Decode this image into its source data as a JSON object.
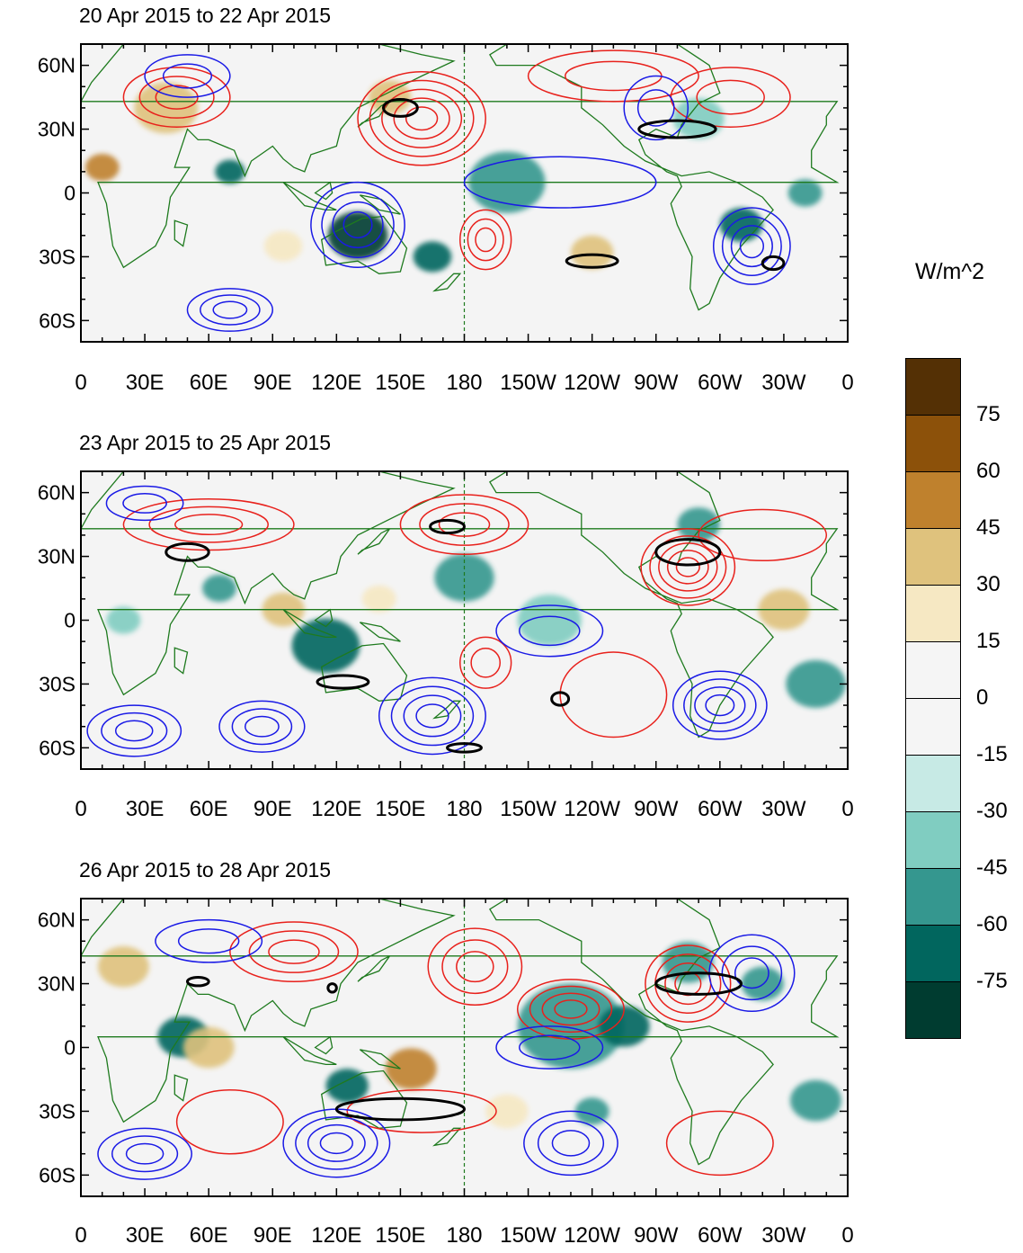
{
  "units_label": "W/m^2",
  "colors": {
    "positive_contour": "#e8211c",
    "negative_contour": "#1a1ae6",
    "highlight_contour": "#000000",
    "coastline": "#1e7a1e",
    "background": "#f4f4f4"
  },
  "lon_labels": [
    "0",
    "30E",
    "60E",
    "90E",
    "120E",
    "150E",
    "180",
    "150W",
    "120W",
    "90W",
    "60W",
    "30W",
    "0"
  ],
  "lat_labels": [
    "60N",
    "30N",
    "0",
    "30S",
    "60S"
  ],
  "colorbar": {
    "colors": [
      "#543005",
      "#8c510a",
      "#bf812d",
      "#dfc27d",
      "#f6e8c3",
      "#f5f5f5",
      "#f5f5f5",
      "#c7eae5",
      "#80cdc1",
      "#35978f",
      "#01665e",
      "#003c30"
    ],
    "labels": [
      "75",
      "60",
      "45",
      "30",
      "15",
      "0",
      "-15",
      "-30",
      "-45",
      "-60",
      "-75"
    ]
  },
  "panels": [
    {
      "title": "20 Apr 2015 to 22 Apr 2015",
      "anomalies": [
        {
          "lon": 130,
          "lat": -20,
          "r": 14,
          "value": -75
        },
        {
          "lon": 165,
          "lat": -30,
          "r": 9,
          "value": -60
        },
        {
          "lon": 200,
          "lat": 5,
          "r": 18,
          "value": -45
        },
        {
          "lon": 240,
          "lat": -28,
          "r": 10,
          "value": 30
        },
        {
          "lon": 310,
          "lat": -15,
          "r": 10,
          "value": -60
        },
        {
          "lon": 70,
          "lat": 10,
          "r": 7,
          "value": -60
        },
        {
          "lon": 10,
          "lat": 12,
          "r": 8,
          "value": 45
        },
        {
          "lon": 40,
          "lat": 40,
          "r": 15,
          "value": 30
        },
        {
          "lon": 145,
          "lat": 45,
          "r": 10,
          "value": 30
        },
        {
          "lon": 290,
          "lat": 35,
          "r": 12,
          "value": -30
        },
        {
          "lon": 340,
          "lat": 0,
          "r": 8,
          "value": -45
        },
        {
          "lon": 95,
          "lat": -25,
          "r": 9,
          "value": 15
        }
      ],
      "contours": [
        {
          "sign": "pos",
          "lon": 160,
          "lat": 35,
          "rx": 30,
          "ry": 22,
          "levels": 5
        },
        {
          "sign": "pos",
          "lon": 45,
          "lat": 45,
          "rx": 25,
          "ry": 14,
          "levels": 3
        },
        {
          "sign": "pos",
          "lon": 190,
          "lat": -22,
          "rx": 12,
          "ry": 14,
          "levels": 3
        },
        {
          "sign": "pos",
          "lon": 250,
          "lat": 55,
          "rx": 40,
          "ry": 12,
          "levels": 2
        },
        {
          "sign": "pos",
          "lon": 305,
          "lat": 45,
          "rx": 28,
          "ry": 14,
          "levels": 2
        },
        {
          "sign": "neg",
          "lon": 70,
          "lat": -55,
          "rx": 20,
          "ry": 10,
          "levels": 3
        },
        {
          "sign": "neg",
          "lon": 130,
          "lat": -15,
          "rx": 22,
          "ry": 20,
          "levels": 4
        },
        {
          "sign": "neg",
          "lon": 315,
          "lat": -25,
          "rx": 18,
          "ry": 18,
          "levels": 4
        },
        {
          "sign": "neg",
          "lon": 50,
          "lat": 55,
          "rx": 20,
          "ry": 10,
          "levels": 2
        },
        {
          "sign": "neg",
          "lon": 225,
          "lat": 5,
          "rx": 45,
          "ry": 12,
          "levels": 1
        },
        {
          "sign": "neg",
          "lon": 270,
          "lat": 40,
          "rx": 15,
          "ry": 15,
          "levels": 2
        }
      ],
      "highlights": [
        {
          "lon": 150,
          "lat": 40,
          "rx": 8,
          "ry": 4
        },
        {
          "lon": 240,
          "lat": -32,
          "rx": 12,
          "ry": 3
        },
        {
          "lon": 280,
          "lat": 30,
          "rx": 18,
          "ry": 4
        },
        {
          "lon": 325,
          "lat": -33,
          "rx": 5,
          "ry": 3
        }
      ]
    },
    {
      "title": "23 Apr 2015 to 25 Apr 2015",
      "anomalies": [
        {
          "lon": 115,
          "lat": -12,
          "r": 16,
          "value": -60
        },
        {
          "lon": 65,
          "lat": 15,
          "r": 8,
          "value": -45
        },
        {
          "lon": 180,
          "lat": 20,
          "r": 14,
          "value": -45
        },
        {
          "lon": 220,
          "lat": 0,
          "r": 15,
          "value": -30
        },
        {
          "lon": 95,
          "lat": 5,
          "r": 10,
          "value": 30
        },
        {
          "lon": 330,
          "lat": 5,
          "r": 12,
          "value": 30
        },
        {
          "lon": 345,
          "lat": -30,
          "r": 14,
          "value": -45
        },
        {
          "lon": 290,
          "lat": 45,
          "r": 10,
          "value": -45
        },
        {
          "lon": 20,
          "lat": 0,
          "r": 8,
          "value": -30
        },
        {
          "lon": 140,
          "lat": 10,
          "r": 8,
          "value": 15
        }
      ],
      "contours": [
        {
          "sign": "pos",
          "lon": 60,
          "lat": 45,
          "rx": 40,
          "ry": 12,
          "levels": 3
        },
        {
          "sign": "pos",
          "lon": 180,
          "lat": 45,
          "rx": 30,
          "ry": 14,
          "levels": 3
        },
        {
          "sign": "pos",
          "lon": 285,
          "lat": 25,
          "rx": 22,
          "ry": 18,
          "levels": 5
        },
        {
          "sign": "pos",
          "lon": 190,
          "lat": -20,
          "rx": 12,
          "ry": 12,
          "levels": 2
        },
        {
          "sign": "pos",
          "lon": 250,
          "lat": -35,
          "rx": 25,
          "ry": 20,
          "levels": 1
        },
        {
          "sign": "pos",
          "lon": 320,
          "lat": 40,
          "rx": 30,
          "ry": 12,
          "levels": 1
        },
        {
          "sign": "neg",
          "lon": 25,
          "lat": -52,
          "rx": 22,
          "ry": 12,
          "levels": 3
        },
        {
          "sign": "neg",
          "lon": 85,
          "lat": -50,
          "rx": 20,
          "ry": 12,
          "levels": 3
        },
        {
          "sign": "neg",
          "lon": 165,
          "lat": -45,
          "rx": 25,
          "ry": 18,
          "levels": 4
        },
        {
          "sign": "neg",
          "lon": 300,
          "lat": -40,
          "rx": 22,
          "ry": 16,
          "levels": 4
        },
        {
          "sign": "neg",
          "lon": 220,
          "lat": -5,
          "rx": 25,
          "ry": 12,
          "levels": 2
        },
        {
          "sign": "neg",
          "lon": 30,
          "lat": 55,
          "rx": 18,
          "ry": 8,
          "levels": 2
        }
      ],
      "highlights": [
        {
          "lon": 50,
          "lat": 32,
          "rx": 10,
          "ry": 4
        },
        {
          "lon": 123,
          "lat": -29,
          "rx": 12,
          "ry": 3
        },
        {
          "lon": 172,
          "lat": 44,
          "rx": 8,
          "ry": 3
        },
        {
          "lon": 285,
          "lat": 32,
          "rx": 15,
          "ry": 6
        },
        {
          "lon": 180,
          "lat": -60,
          "rx": 8,
          "ry": 2
        },
        {
          "lon": 225,
          "lat": -37,
          "rx": 4,
          "ry": 3
        }
      ]
    },
    {
      "title": "26 Apr 2015 to 28 Apr 2015",
      "anomalies": [
        {
          "lon": 48,
          "lat": 5,
          "r": 12,
          "value": -60
        },
        {
          "lon": 125,
          "lat": -18,
          "r": 10,
          "value": -60
        },
        {
          "lon": 230,
          "lat": 10,
          "r": 25,
          "value": -45
        },
        {
          "lon": 255,
          "lat": 10,
          "r": 12,
          "value": -60
        },
        {
          "lon": 285,
          "lat": 40,
          "r": 12,
          "value": -45
        },
        {
          "lon": 320,
          "lat": 30,
          "r": 10,
          "value": -45
        },
        {
          "lon": 240,
          "lat": -30,
          "r": 8,
          "value": -45
        },
        {
          "lon": 155,
          "lat": -10,
          "r": 12,
          "value": 45
        },
        {
          "lon": 345,
          "lat": -25,
          "r": 12,
          "value": -45
        },
        {
          "lon": 60,
          "lat": 0,
          "r": 12,
          "value": 30
        },
        {
          "lon": 200,
          "lat": -30,
          "r": 10,
          "value": 15
        },
        {
          "lon": 20,
          "lat": 38,
          "r": 12,
          "value": 30
        }
      ],
      "contours": [
        {
          "sign": "pos",
          "lon": 100,
          "lat": 45,
          "rx": 30,
          "ry": 14,
          "levels": 3
        },
        {
          "sign": "pos",
          "lon": 185,
          "lat": 38,
          "rx": 22,
          "ry": 18,
          "levels": 3
        },
        {
          "sign": "pos",
          "lon": 230,
          "lat": 18,
          "rx": 25,
          "ry": 14,
          "levels": 4
        },
        {
          "sign": "pos",
          "lon": 285,
          "lat": 30,
          "rx": 20,
          "ry": 18,
          "levels": 4
        },
        {
          "sign": "pos",
          "lon": 160,
          "lat": -30,
          "rx": 35,
          "ry": 10,
          "levels": 1
        },
        {
          "sign": "pos",
          "lon": 70,
          "lat": -35,
          "rx": 25,
          "ry": 15,
          "levels": 1
        },
        {
          "sign": "pos",
          "lon": 300,
          "lat": -45,
          "rx": 25,
          "ry": 15,
          "levels": 1
        },
        {
          "sign": "neg",
          "lon": 30,
          "lat": -50,
          "rx": 22,
          "ry": 12,
          "levels": 3
        },
        {
          "sign": "neg",
          "lon": 120,
          "lat": -45,
          "rx": 25,
          "ry": 16,
          "levels": 4
        },
        {
          "sign": "neg",
          "lon": 230,
          "lat": -45,
          "rx": 22,
          "ry": 15,
          "levels": 3
        },
        {
          "sign": "neg",
          "lon": 220,
          "lat": 0,
          "rx": 25,
          "ry": 10,
          "levels": 2
        },
        {
          "sign": "neg",
          "lon": 315,
          "lat": 35,
          "rx": 20,
          "ry": 18,
          "levels": 3
        },
        {
          "sign": "neg",
          "lon": 60,
          "lat": 50,
          "rx": 25,
          "ry": 10,
          "levels": 2
        }
      ],
      "highlights": [
        {
          "lon": 55,
          "lat": 31,
          "rx": 5,
          "ry": 2
        },
        {
          "lon": 118,
          "lat": 28,
          "rx": 2,
          "ry": 2
        },
        {
          "lon": 150,
          "lat": -29,
          "rx": 30,
          "ry": 5
        },
        {
          "lon": 290,
          "lat": 30,
          "rx": 20,
          "ry": 5
        }
      ]
    }
  ]
}
